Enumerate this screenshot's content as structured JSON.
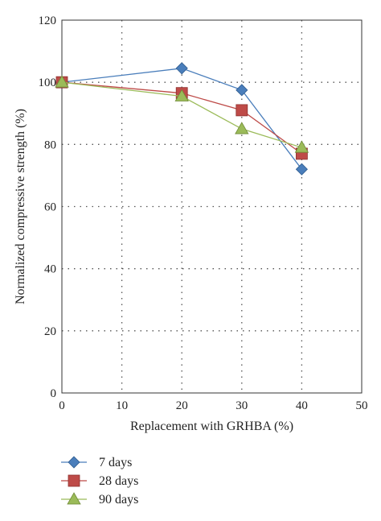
{
  "chart_data": {
    "type": "line",
    "title": "",
    "xlabel": "Replacement with GRHBA (%)",
    "ylabel": "Normalized compressive strength (%)",
    "xlim": [
      0,
      50
    ],
    "ylim": [
      0,
      120
    ],
    "xticks": [
      0,
      10,
      20,
      30,
      40,
      50
    ],
    "yticks": [
      0,
      20,
      40,
      60,
      80,
      100,
      120
    ],
    "grid": true,
    "legend_position": "bottom",
    "x": [
      0,
      20,
      30,
      40
    ],
    "series": [
      {
        "name": "7 days",
        "values": [
          100,
          104.5,
          97.5,
          72
        ],
        "color": "#4a7ebb",
        "marker": "diamond"
      },
      {
        "name": "28 days",
        "values": [
          100,
          96.5,
          91,
          77
        ],
        "color": "#be4b48",
        "marker": "square"
      },
      {
        "name": "90 days",
        "values": [
          100,
          95.5,
          85,
          79
        ],
        "color": "#9bbb59",
        "marker": "triangle"
      }
    ]
  }
}
